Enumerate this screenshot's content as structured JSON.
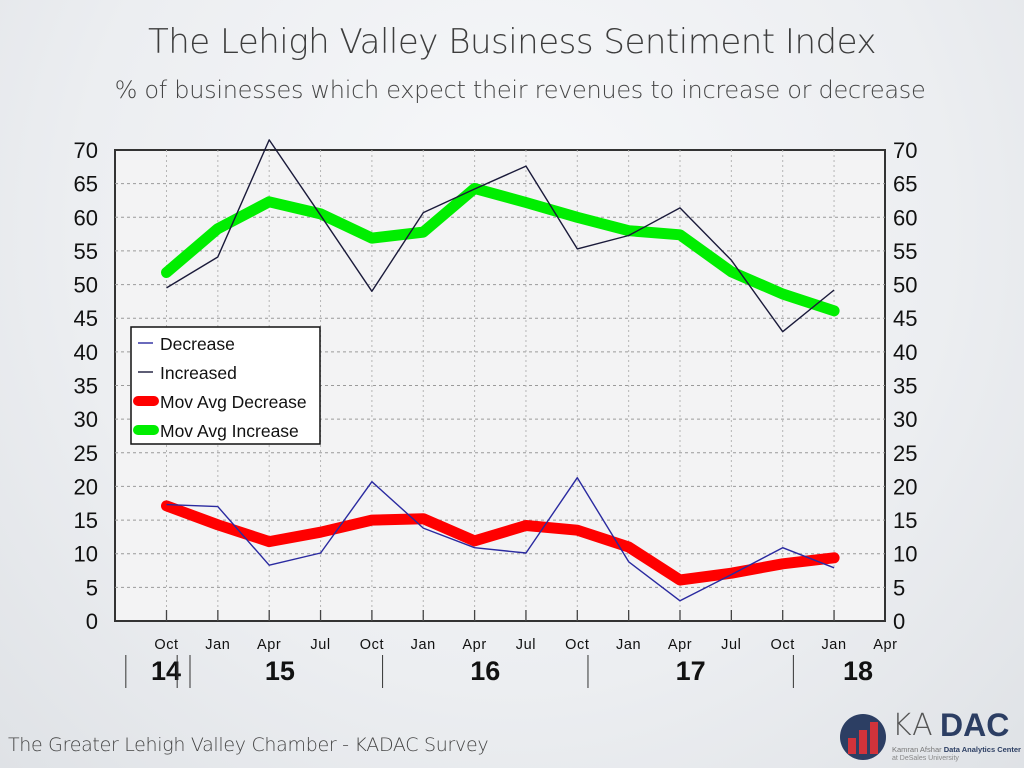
{
  "slide": {
    "title": "The Lehigh Valley Business Sentiment Index",
    "subtitle": "% of businesses which expect their revenues to increase or decrease",
    "footer": "The Greater Lehigh Valley Chamber - KADAC Survey",
    "logo": {
      "ka": "KA",
      "dac": "DAC",
      "line1_prefix": "Kamran Afshar ",
      "line1_bold": "Data Analytics Center",
      "line2": "at DeSales University"
    }
  },
  "chart_data": {
    "type": "line",
    "title": "The Lehigh Valley Business Sentiment Index",
    "subtitle": "% of businesses which expect their revenues to increase or decrease",
    "xlabel": "",
    "ylabel": "",
    "ylim": [
      0,
      70
    ],
    "yticks": [
      0,
      5,
      10,
      15,
      20,
      25,
      30,
      35,
      40,
      45,
      50,
      55,
      60,
      65,
      70
    ],
    "y_axes": [
      "left",
      "right"
    ],
    "grid": true,
    "legend_position": "center-left",
    "x_ticks": [
      "Oct",
      "Jan",
      "Apr",
      "Jul",
      "Oct",
      "Jan",
      "Apr",
      "Jul",
      "Oct",
      "Jan",
      "Apr",
      "Jul",
      "Oct",
      "Jan",
      "Apr"
    ],
    "x_tick_count_with_data": 14,
    "year_labels": [
      {
        "label": "14",
        "start_tick": -0.5,
        "end_tick": 0.5
      },
      {
        "label": "15",
        "start_tick": 0.5,
        "end_tick": 4.5
      },
      {
        "label": "16",
        "start_tick": 4.5,
        "end_tick": 8.5
      },
      {
        "label": "17",
        "start_tick": 8.5,
        "end_tick": 12.5
      },
      {
        "label": "18",
        "start_tick": 12.5,
        "end_tick": 14.5
      }
    ],
    "categories": [
      "Oct 14",
      "Jan 15",
      "Apr 15",
      "Jul 15",
      "Oct 15",
      "Jan 16",
      "Apr 16",
      "Jul 16",
      "Oct 16",
      "Jan 17",
      "Apr 17",
      "Jul 17",
      "Oct 17",
      "Jan 18"
    ],
    "series": [
      {
        "name": "Decrease",
        "color": "#2a2aa0",
        "width": "thin",
        "values": [
          17.3,
          17.0,
          8.3,
          10.1,
          20.7,
          13.8,
          10.9,
          10.1,
          21.3,
          8.8,
          3.0,
          6.9,
          10.9,
          7.9
        ]
      },
      {
        "name": "Increased",
        "color": "#1a1a3a",
        "width": "thin",
        "values": [
          49.5,
          54.1,
          71.5,
          60.3,
          49.0,
          60.7,
          64.2,
          67.6,
          55.3,
          57.3,
          61.4,
          53.6,
          43.0,
          49.2
        ]
      },
      {
        "name": "Mov Avg Decrease",
        "color": "#ff0000",
        "width": "thick",
        "values": [
          17.1,
          14.3,
          11.8,
          13.2,
          15.0,
          15.2,
          11.9,
          14.2,
          13.5,
          11.0,
          6.1,
          7.1,
          8.5,
          9.4
        ]
      },
      {
        "name": "Mov Avg Increase",
        "color": "#00ee00",
        "width": "thick",
        "values": [
          51.8,
          58.3,
          62.3,
          60.5,
          56.9,
          57.8,
          64.3,
          62.2,
          60.0,
          58.0,
          57.4,
          51.9,
          48.6,
          46.1
        ]
      }
    ]
  }
}
